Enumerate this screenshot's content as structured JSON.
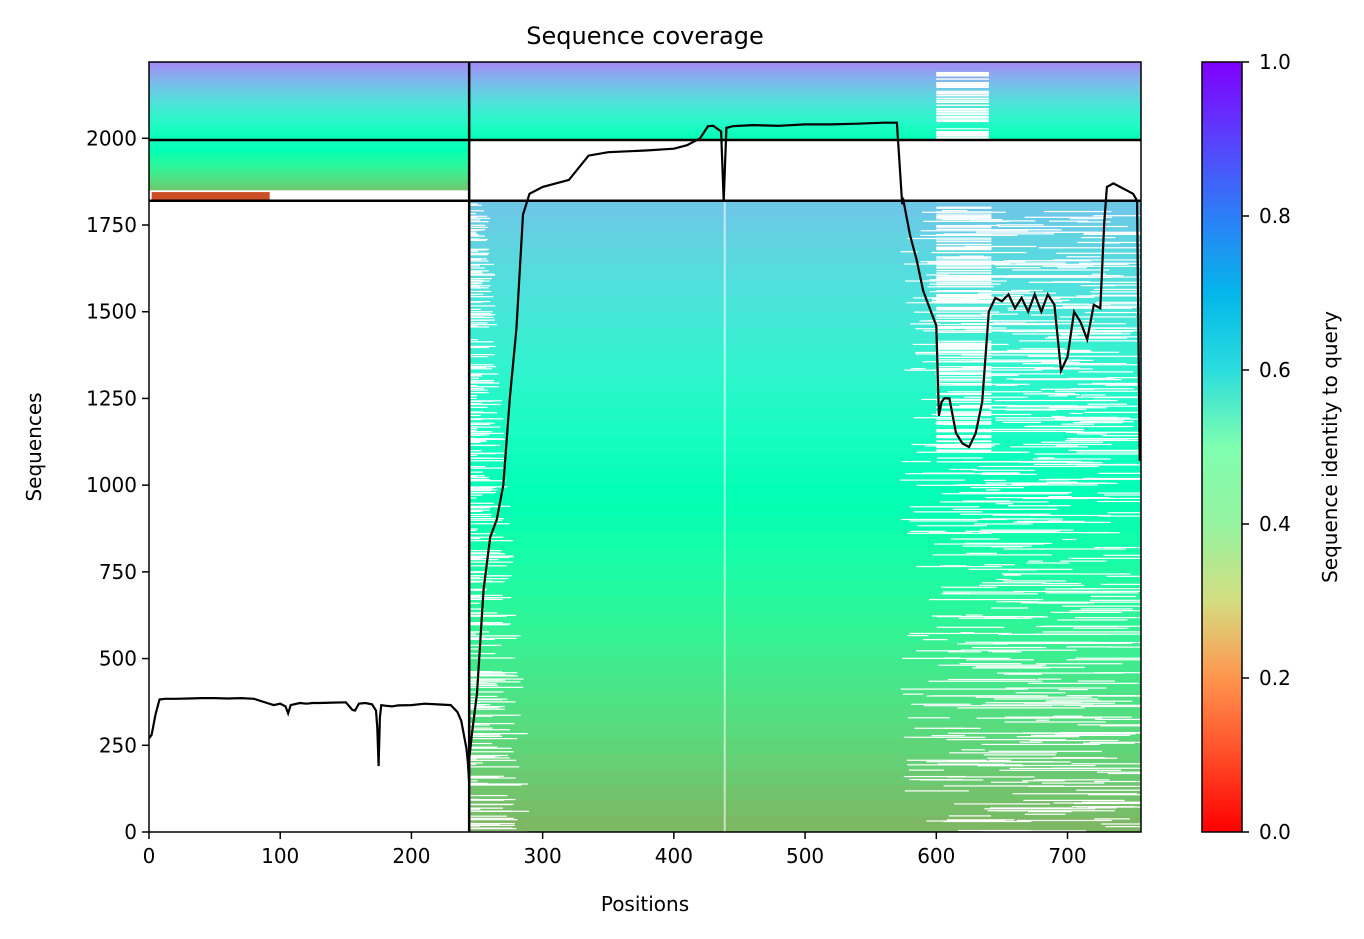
{
  "chart_data": {
    "type": "heatmap",
    "title": "Sequence coverage",
    "xlabel": "Positions",
    "ylabel": "Sequences",
    "colorbar_label": "Sequence identity to query",
    "xlim": [
      0,
      756
    ],
    "ylim": [
      0,
      2220
    ],
    "x_ticks": [
      0,
      100,
      200,
      300,
      400,
      500,
      600,
      700
    ],
    "y_ticks": [
      0,
      250,
      500,
      750,
      1000,
      1250,
      1500,
      1750,
      2000
    ],
    "colorbar_ticks": [
      "0.0",
      "0.2",
      "0.4",
      "0.6",
      "0.8",
      "1.0"
    ],
    "colormap": "rainbow_r",
    "colorbar_range": [
      0,
      1
    ],
    "chain_boundaries": {
      "vertical_x": [
        244
      ],
      "horizontal_y": [
        1820,
        1995
      ]
    },
    "blocks": [
      {
        "name": "chain-1-only",
        "x": [
          0,
          244
        ],
        "y": [
          1820,
          1995
        ],
        "identity_bottom": 0.22,
        "identity_top": 0.55
      },
      {
        "name": "paired",
        "x": [
          0,
          756
        ],
        "y": [
          1995,
          2220
        ],
        "identity_bottom": 0.5,
        "identity_top": 0.82
      },
      {
        "name": "chain-2-only",
        "x": [
          244,
          756
        ],
        "y": [
          0,
          1820
        ],
        "identity_bottom": 0.25,
        "identity_top": 0.72
      }
    ],
    "coverage_series": [
      {
        "x": [
          0,
          2,
          5,
          8,
          12,
          20,
          30,
          40,
          50,
          60,
          70,
          80,
          90,
          95,
          100,
          104,
          106,
          108,
          115,
          120,
          125,
          130,
          140,
          150,
          155,
          157,
          160,
          165,
          170,
          173,
          174,
          175,
          176,
          177,
          180,
          185,
          190,
          200,
          210,
          220,
          230,
          235,
          238,
          240,
          242,
          243,
          244
        ],
        "y": [
          270,
          280,
          340,
          382,
          384,
          384,
          385,
          386,
          386,
          385,
          386,
          384,
          372,
          366,
          370,
          362,
          342,
          366,
          372,
          370,
          372,
          372,
          373,
          374,
          352,
          350,
          370,
          372,
          368,
          350,
          300,
          190,
          330,
          366,
          364,
          362,
          365,
          366,
          370,
          368,
          366,
          346,
          320,
          280,
          240,
          200,
          140
        ]
      },
      {
        "x": [
          244,
          246,
          250,
          255,
          260,
          265,
          270,
          275,
          280,
          285,
          290,
          300,
          320,
          335,
          350,
          380,
          400,
          410,
          420,
          426,
          430,
          436,
          438,
          440,
          445,
          460,
          480,
          500,
          520,
          540,
          560,
          570,
          574,
          575,
          577,
          580,
          585,
          590,
          595,
          600,
          602,
          604,
          606,
          610,
          615,
          620,
          625,
          630,
          635,
          640,
          645,
          650,
          655,
          660,
          665,
          670,
          675,
          680,
          685,
          690,
          695,
          700,
          705,
          710,
          715,
          720,
          725,
          728,
          730,
          735,
          740,
          745,
          750,
          753,
          755
        ],
        "y": [
          210,
          280,
          400,
          700,
          850,
          900,
          1000,
          1250,
          1450,
          1780,
          1840,
          1860,
          1880,
          1950,
          1960,
          1965,
          1970,
          1980,
          2000,
          2035,
          2036,
          2020,
          1820,
          2030,
          2035,
          2038,
          2036,
          2040,
          2040,
          2042,
          2045,
          2045,
          1810,
          1820,
          1780,
          1720,
          1650,
          1560,
          1510,
          1460,
          1200,
          1240,
          1250,
          1250,
          1150,
          1120,
          1110,
          1150,
          1240,
          1500,
          1540,
          1530,
          1550,
          1510,
          1540,
          1500,
          1550,
          1500,
          1550,
          1520,
          1330,
          1370,
          1500,
          1470,
          1420,
          1520,
          1510,
          1760,
          1860,
          1870,
          1860,
          1850,
          1840,
          1820,
          1070
        ]
      }
    ]
  }
}
